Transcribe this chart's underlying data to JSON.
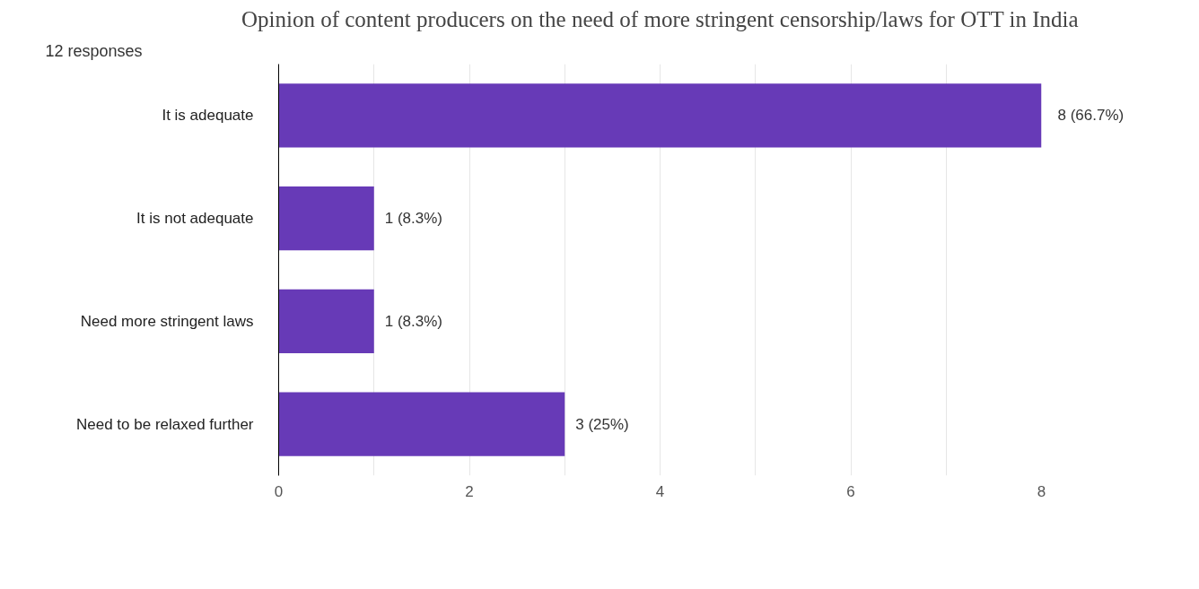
{
  "chart_data": {
    "type": "bar",
    "orientation": "horizontal",
    "title": "Opinion of content producers on the need of more stringent censorship/laws for OTT in India",
    "subtitle": "12 responses",
    "categories": [
      "It is adequate",
      "It is not adequate",
      "Need more stringent laws",
      "Need to be relaxed further"
    ],
    "values": [
      8,
      1,
      1,
      3
    ],
    "color": "#673ab7",
    "value_labels": [
      "8 (66.7%)",
      "1 (8.3%)",
      "1 (8.3%)",
      "3 (25%)"
    ],
    "xlim": [
      0,
      8
    ],
    "xticks": [
      0,
      {
        "value": 1,
        "label": null
      },
      2,
      {
        "value": 3,
        "label": null
      },
      4,
      {
        "value": 5,
        "label": null
      },
      6,
      {
        "value": 7,
        "label": null
      },
      8
    ],
    "grid": "x"
  }
}
